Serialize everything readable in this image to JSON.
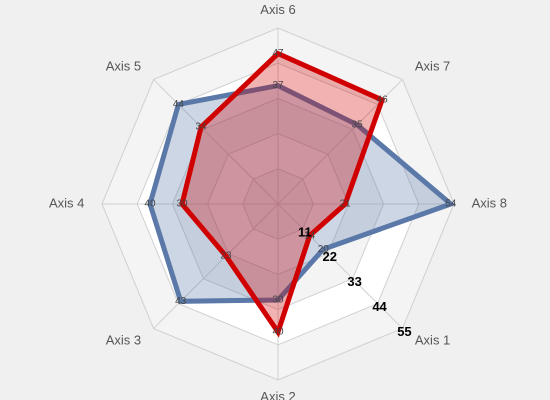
{
  "chart_data": {
    "type": "radar",
    "categories": [
      "Axis 1",
      "Axis 2",
      "Axis 3",
      "Axis 4",
      "Axis 5",
      "Axis 6",
      "Axis 7",
      "Axis 8"
    ],
    "series": [
      {
        "color": "#5a78a8",
        "values": [
          20,
          30,
          43,
          40,
          44,
          37,
          35,
          54
        ]
      },
      {
        "color": "#d00000",
        "values": [
          14,
          40,
          23,
          30,
          34,
          47,
          46,
          21
        ]
      }
    ],
    "ylim": [
      0,
      55
    ],
    "yticks": [
      11,
      22,
      33,
      44,
      55
    ],
    "grid": true
  }
}
